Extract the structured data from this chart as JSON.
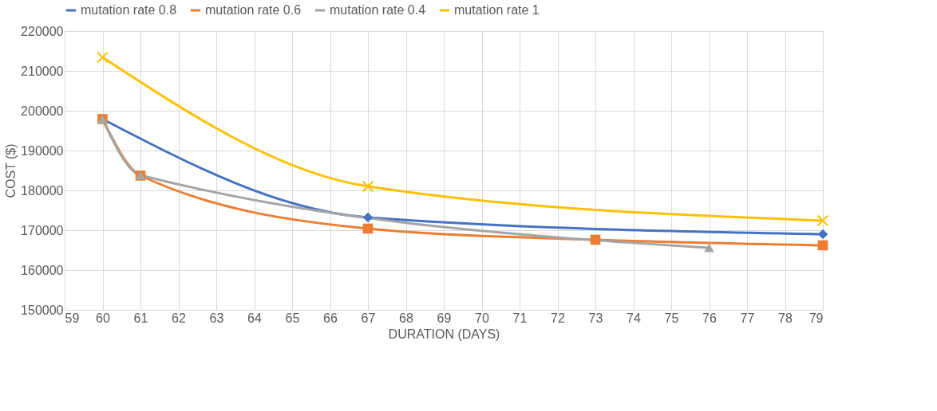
{
  "chart_data": {
    "type": "line",
    "xlabel": "DURATION (DAYS)",
    "ylabel": "COST ($)",
    "xlim": [
      59,
      79
    ],
    "xticks": [
      59,
      60,
      61,
      62,
      63,
      64,
      65,
      66,
      67,
      68,
      69,
      70,
      71,
      72,
      73,
      74,
      75,
      76,
      77,
      78,
      79
    ],
    "ylim": [
      150000,
      220000
    ],
    "yticks": [
      150000,
      160000,
      170000,
      180000,
      190000,
      200000,
      210000,
      220000
    ],
    "grid": true,
    "legend": "top",
    "series": [
      {
        "name": "mutation rate 0.8",
        "color": "#4472c4",
        "marker": "diamond",
        "x": [
          60,
          67,
          79
        ],
        "values": [
          197900,
          173200,
          169000
        ]
      },
      {
        "name": "mutation rate 0.6",
        "color": "#ed7d31",
        "marker": "square",
        "x": [
          60,
          61,
          67,
          73,
          79
        ],
        "values": [
          197900,
          183700,
          170400,
          167600,
          166200
        ]
      },
      {
        "name": "mutation rate 0.4",
        "color": "#a5a5a5",
        "marker": "triangle",
        "x": [
          60,
          61,
          76
        ],
        "values": [
          197800,
          183800,
          165600
        ]
      },
      {
        "name": "mutation rate 1",
        "color": "#ffc000",
        "marker": "cross",
        "x": [
          60,
          67,
          79
        ],
        "values": [
          213400,
          181000,
          172400
        ]
      }
    ]
  }
}
